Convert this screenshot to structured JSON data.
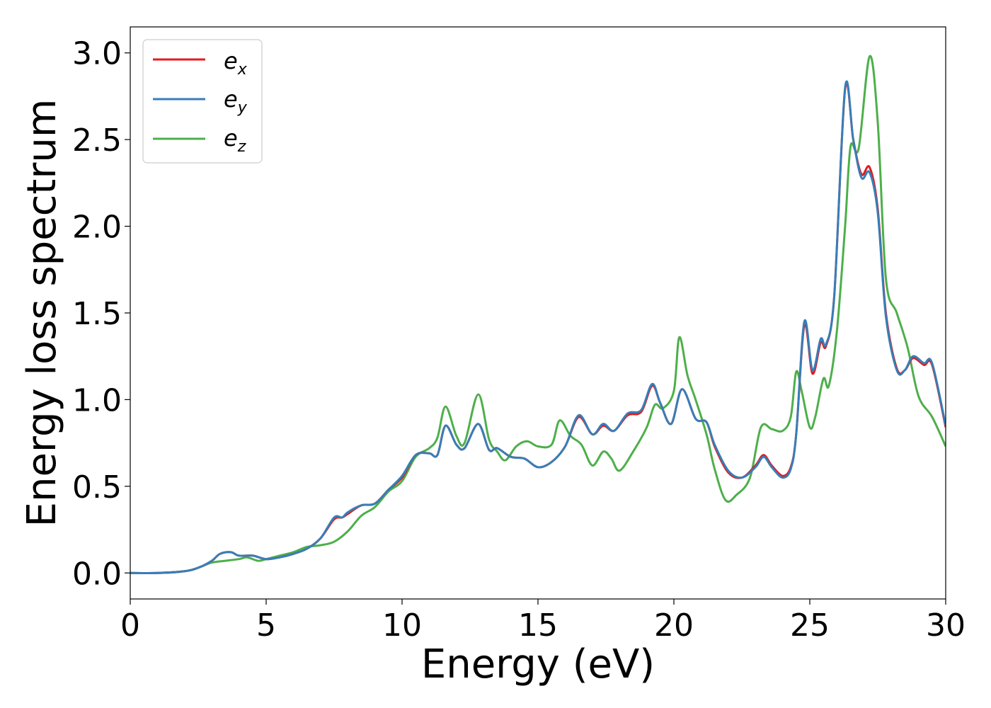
{
  "chart_data": {
    "type": "line",
    "title": "",
    "xlabel": "Energy (eV)",
    "ylabel": "Energy loss spectrum",
    "xlim": [
      0,
      30
    ],
    "ylim": [
      -0.15,
      3.15
    ],
    "xticks": [
      "0",
      "5",
      "10",
      "15",
      "20",
      "25",
      "30"
    ],
    "yticks": [
      "0.0",
      "0.5",
      "1.0",
      "1.5",
      "2.0",
      "2.5",
      "3.0"
    ],
    "grid": false,
    "legend_position": "top-left",
    "series": [
      {
        "name": "e_x",
        "label_main": "e",
        "label_sub": "x",
        "color": "#e41a1c",
        "points": [
          [
            0,
            0
          ],
          [
            1,
            0
          ],
          [
            2,
            0.01
          ],
          [
            2.5,
            0.03
          ],
          [
            3,
            0.07
          ],
          [
            3.3,
            0.11
          ],
          [
            3.7,
            0.12
          ],
          [
            4,
            0.1
          ],
          [
            4.5,
            0.1
          ],
          [
            5,
            0.08
          ],
          [
            5.5,
            0.09
          ],
          [
            6,
            0.11
          ],
          [
            6.5,
            0.14
          ],
          [
            7,
            0.2
          ],
          [
            7.5,
            0.31
          ],
          [
            7.8,
            0.32
          ],
          [
            8,
            0.34
          ],
          [
            8.5,
            0.39
          ],
          [
            9,
            0.4
          ],
          [
            9.5,
            0.48
          ],
          [
            10,
            0.55
          ],
          [
            10.5,
            0.68
          ],
          [
            11,
            0.69
          ],
          [
            11.3,
            0.68
          ],
          [
            11.6,
            0.85
          ],
          [
            12,
            0.74
          ],
          [
            12.3,
            0.72
          ],
          [
            12.8,
            0.86
          ],
          [
            13.2,
            0.71
          ],
          [
            13.5,
            0.72
          ],
          [
            14,
            0.67
          ],
          [
            14.5,
            0.66
          ],
          [
            15,
            0.61
          ],
          [
            15.5,
            0.64
          ],
          [
            16,
            0.73
          ],
          [
            16.5,
            0.9
          ],
          [
            17,
            0.8
          ],
          [
            17.4,
            0.85
          ],
          [
            17.8,
            0.82
          ],
          [
            18.3,
            0.91
          ],
          [
            18.8,
            0.93
          ],
          [
            19.2,
            1.08
          ],
          [
            19.5,
            0.98
          ],
          [
            19.9,
            0.86
          ],
          [
            20.3,
            1.06
          ],
          [
            20.8,
            0.89
          ],
          [
            21.2,
            0.87
          ],
          [
            21.5,
            0.73
          ],
          [
            22,
            0.58
          ],
          [
            22.5,
            0.55
          ],
          [
            23,
            0.62
          ],
          [
            23.3,
            0.68
          ],
          [
            23.6,
            0.62
          ],
          [
            24,
            0.56
          ],
          [
            24.3,
            0.61
          ],
          [
            24.5,
            0.8
          ],
          [
            24.8,
            1.43
          ],
          [
            25.1,
            1.15
          ],
          [
            25.4,
            1.33
          ],
          [
            25.6,
            1.31
          ],
          [
            25.9,
            1.6
          ],
          [
            26.3,
            2.79
          ],
          [
            26.6,
            2.5
          ],
          [
            26.9,
            2.3
          ],
          [
            27.2,
            2.34
          ],
          [
            27.5,
            2.1
          ],
          [
            27.8,
            1.5
          ],
          [
            28.2,
            1.18
          ],
          [
            28.5,
            1.17
          ],
          [
            28.8,
            1.24
          ],
          [
            29.2,
            1.2
          ],
          [
            29.5,
            1.2
          ],
          [
            30,
            0.84
          ]
        ]
      },
      {
        "name": "e_y",
        "label_main": "e",
        "label_sub": "y",
        "color": "#377eb8",
        "points": [
          [
            0,
            0
          ],
          [
            1,
            0
          ],
          [
            2,
            0.01
          ],
          [
            2.5,
            0.03
          ],
          [
            3,
            0.07
          ],
          [
            3.3,
            0.11
          ],
          [
            3.7,
            0.12
          ],
          [
            4,
            0.1
          ],
          [
            4.5,
            0.1
          ],
          [
            5,
            0.08
          ],
          [
            5.5,
            0.09
          ],
          [
            6,
            0.11
          ],
          [
            6.5,
            0.14
          ],
          [
            7,
            0.2
          ],
          [
            7.5,
            0.32
          ],
          [
            7.8,
            0.32
          ],
          [
            8,
            0.35
          ],
          [
            8.5,
            0.39
          ],
          [
            9,
            0.4
          ],
          [
            9.5,
            0.48
          ],
          [
            10,
            0.56
          ],
          [
            10.5,
            0.68
          ],
          [
            11,
            0.69
          ],
          [
            11.3,
            0.68
          ],
          [
            11.6,
            0.85
          ],
          [
            12,
            0.74
          ],
          [
            12.3,
            0.72
          ],
          [
            12.8,
            0.86
          ],
          [
            13.2,
            0.71
          ],
          [
            13.5,
            0.72
          ],
          [
            14,
            0.67
          ],
          [
            14.5,
            0.66
          ],
          [
            15,
            0.61
          ],
          [
            15.5,
            0.64
          ],
          [
            16,
            0.73
          ],
          [
            16.5,
            0.91
          ],
          [
            17,
            0.8
          ],
          [
            17.4,
            0.86
          ],
          [
            17.8,
            0.82
          ],
          [
            18.3,
            0.92
          ],
          [
            18.8,
            0.94
          ],
          [
            19.2,
            1.09
          ],
          [
            19.5,
            0.98
          ],
          [
            19.9,
            0.86
          ],
          [
            20.3,
            1.06
          ],
          [
            20.8,
            0.89
          ],
          [
            21.2,
            0.87
          ],
          [
            21.5,
            0.74
          ],
          [
            22,
            0.59
          ],
          [
            22.5,
            0.55
          ],
          [
            23,
            0.61
          ],
          [
            23.3,
            0.67
          ],
          [
            23.6,
            0.61
          ],
          [
            24,
            0.55
          ],
          [
            24.3,
            0.6
          ],
          [
            24.5,
            0.8
          ],
          [
            24.8,
            1.45
          ],
          [
            25.1,
            1.17
          ],
          [
            25.4,
            1.35
          ],
          [
            25.6,
            1.32
          ],
          [
            25.9,
            1.6
          ],
          [
            26.3,
            2.8
          ],
          [
            26.6,
            2.5
          ],
          [
            26.9,
            2.28
          ],
          [
            27.2,
            2.31
          ],
          [
            27.5,
            2.08
          ],
          [
            27.8,
            1.48
          ],
          [
            28.2,
            1.17
          ],
          [
            28.5,
            1.17
          ],
          [
            28.8,
            1.25
          ],
          [
            29.2,
            1.21
          ],
          [
            29.5,
            1.21
          ],
          [
            30,
            0.85
          ]
        ]
      },
      {
        "name": "e_z",
        "label_main": "e",
        "label_sub": "z",
        "color": "#4daf4a",
        "points": [
          [
            0,
            0
          ],
          [
            1,
            0
          ],
          [
            2,
            0.01
          ],
          [
            2.5,
            0.03
          ],
          [
            3,
            0.06
          ],
          [
            3.5,
            0.07
          ],
          [
            4,
            0.08
          ],
          [
            4.3,
            0.09
          ],
          [
            4.7,
            0.07
          ],
          [
            5,
            0.08
          ],
          [
            5.5,
            0.1
          ],
          [
            6,
            0.12
          ],
          [
            6.5,
            0.15
          ],
          [
            7,
            0.16
          ],
          [
            7.5,
            0.18
          ],
          [
            8,
            0.24
          ],
          [
            8.5,
            0.33
          ],
          [
            9,
            0.38
          ],
          [
            9.5,
            0.47
          ],
          [
            10,
            0.53
          ],
          [
            10.5,
            0.67
          ],
          [
            11,
            0.72
          ],
          [
            11.3,
            0.78
          ],
          [
            11.6,
            0.96
          ],
          [
            12,
            0.79
          ],
          [
            12.3,
            0.75
          ],
          [
            12.8,
            1.03
          ],
          [
            13.2,
            0.77
          ],
          [
            13.5,
            0.7
          ],
          [
            13.8,
            0.65
          ],
          [
            14.2,
            0.73
          ],
          [
            14.6,
            0.76
          ],
          [
            15,
            0.73
          ],
          [
            15.5,
            0.74
          ],
          [
            15.8,
            0.88
          ],
          [
            16.2,
            0.79
          ],
          [
            16.6,
            0.74
          ],
          [
            17,
            0.62
          ],
          [
            17.4,
            0.7
          ],
          [
            17.7,
            0.66
          ],
          [
            18,
            0.59
          ],
          [
            18.5,
            0.7
          ],
          [
            19,
            0.84
          ],
          [
            19.3,
            0.97
          ],
          [
            19.6,
            0.95
          ],
          [
            20,
            1.05
          ],
          [
            20.2,
            1.36
          ],
          [
            20.5,
            1.14
          ],
          [
            20.8,
            1.0
          ],
          [
            21.2,
            0.8
          ],
          [
            21.5,
            0.6
          ],
          [
            21.9,
            0.42
          ],
          [
            22.3,
            0.45
          ],
          [
            22.8,
            0.55
          ],
          [
            23.2,
            0.84
          ],
          [
            23.6,
            0.83
          ],
          [
            24,
            0.82
          ],
          [
            24.3,
            0.9
          ],
          [
            24.5,
            1.16
          ],
          [
            24.7,
            1.05
          ],
          [
            25,
            0.84
          ],
          [
            25.2,
            0.9
          ],
          [
            25.5,
            1.12
          ],
          [
            25.7,
            1.08
          ],
          [
            26,
            1.4
          ],
          [
            26.3,
            2.0
          ],
          [
            26.5,
            2.46
          ],
          [
            26.8,
            2.45
          ],
          [
            27.2,
            2.98
          ],
          [
            27.5,
            2.6
          ],
          [
            27.8,
            1.7
          ],
          [
            28.2,
            1.5
          ],
          [
            28.6,
            1.3
          ],
          [
            29,
            1.02
          ],
          [
            29.5,
            0.9
          ],
          [
            30,
            0.73
          ]
        ]
      }
    ]
  }
}
